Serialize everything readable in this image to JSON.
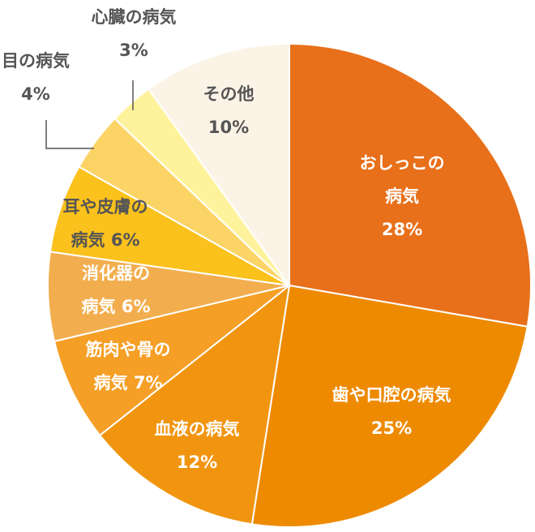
{
  "chart_data": {
    "type": "pie",
    "start": "12 o'clock",
    "direction": "clockwise",
    "slices": [
      {
        "name": "おしっこの病気",
        "label_lines": [
          "おしっこの",
          "病気",
          "28%"
        ],
        "value": 28,
        "color": "#E8701A",
        "label_style": "inside"
      },
      {
        "name": "歯や口腔の病気",
        "label_lines": [
          "歯や口腔の病気",
          "25%"
        ],
        "value": 25,
        "color": "#EE8A00",
        "label_style": "inside"
      },
      {
        "name": "血液の病気",
        "label_lines": [
          "血液の病気",
          "12%"
        ],
        "value": 12,
        "color": "#F19510",
        "label_style": "inside"
      },
      {
        "name": "筋肉や骨の病気",
        "label_lines": [
          "筋肉や骨の",
          "病気 7%"
        ],
        "value": 7,
        "color": "#F59F26",
        "label_style": "inside"
      },
      {
        "name": "消化器の病気",
        "label_lines": [
          "消化器の",
          "病気 6%"
        ],
        "value": 6,
        "color": "#F2AE4E",
        "label_style": "inside"
      },
      {
        "name": "耳や皮膚の病気",
        "label_lines": [
          "耳や皮膚の",
          "病気 6%"
        ],
        "value": 6,
        "color": "#FBC11C",
        "label_style": "dark"
      },
      {
        "name": "目の病気",
        "label_lines": [
          "目の病気",
          "4%"
        ],
        "value": 4,
        "color": "#FCD466",
        "label_style": "outside"
      },
      {
        "name": "心臓の病気",
        "label_lines": [
          "心臓の病気",
          "3%"
        ],
        "value": 3,
        "color": "#FEF39C",
        "label_style": "outside"
      },
      {
        "name": "その他",
        "label_lines": [
          "その他",
          "10%"
        ],
        "value": 10,
        "color": "#FBF3E6",
        "label_style": "dark"
      }
    ]
  }
}
